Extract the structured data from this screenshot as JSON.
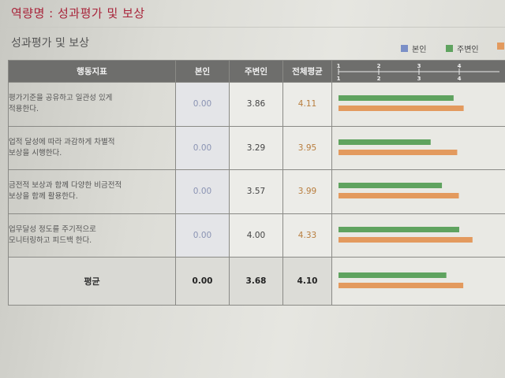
{
  "page_title": "역량명 : 성과평가 및 보상",
  "section_title": "성과평가 및 보상",
  "legend": [
    {
      "label": "본인",
      "color": "#7b8fc7"
    },
    {
      "label": "주변인",
      "color": "#5fa35f"
    },
    {
      "label": "",
      "color": "#e39a5e"
    }
  ],
  "table": {
    "headers": {
      "behavior": "행동지표",
      "self": "본인",
      "peers": "주변인",
      "overall": "전체평균"
    },
    "scale_ticks": [
      "1",
      "2",
      "3",
      "4"
    ],
    "rows": [
      {
        "lines": [
          "평가기준을 공유하고 일관성 있게",
          "적용한다."
        ],
        "self": "0.00",
        "peers": "3.86",
        "overall": "4.11"
      },
      {
        "lines": [
          "업적 달성에 따라 과감하게 차별적",
          "보상을 시행한다."
        ],
        "self": "0.00",
        "peers": "3.29",
        "overall": "3.95"
      },
      {
        "lines": [
          "금전적 보상과 함께 다양한 비금전적",
          "보상을 함께 활용한다."
        ],
        "self": "0.00",
        "peers": "3.57",
        "overall": "3.99"
      },
      {
        "lines": [
          "업무달성 정도를 주기적으로",
          "모니터링하고 피드백 한다."
        ],
        "self": "0.00",
        "peers": "4.00",
        "overall": "4.33"
      }
    ],
    "average": {
      "label": "평균",
      "self": "0.00",
      "peers": "3.68",
      "overall": "4.10"
    }
  },
  "chart_data": {
    "type": "bar",
    "orientation": "horizontal",
    "categories": [
      "평가기준을 공유하고 일관성 있게 적용한다.",
      "업적 달성에 따라 과감하게 차별적 보상을 시행한다.",
      "금전적 보상과 함께 다양한 비금전적 보상을 함께 활용한다.",
      "업무달성 정도를 주기적으로 모니터링하고 피드백 한다.",
      "평균"
    ],
    "series": [
      {
        "name": "주변인",
        "color": "#5fa35f",
        "values": [
          3.86,
          3.29,
          3.57,
          4.0,
          3.68
        ]
      },
      {
        "name": "",
        "color": "#e39a5e",
        "values": [
          4.11,
          3.95,
          3.99,
          4.33,
          4.1
        ]
      }
    ],
    "xlim": [
      1,
      5
    ],
    "ticks": [
      1,
      2,
      3,
      4
    ]
  }
}
